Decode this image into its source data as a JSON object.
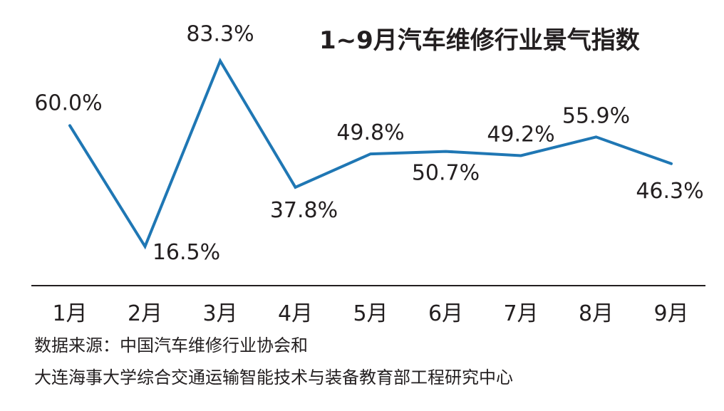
{
  "chart_data": {
    "type": "line",
    "title": "1~9月汽车维修行业景气指数",
    "categories": [
      "1月",
      "2月",
      "3月",
      "4月",
      "5月",
      "6月",
      "7月",
      "8月",
      "9月"
    ],
    "series": [
      {
        "values": [
          60.0,
          16.5,
          83.3,
          37.8,
          49.8,
          50.7,
          49.2,
          55.9,
          46.3
        ],
        "labels": [
          "60.0%",
          "16.5%",
          "83.3%",
          "37.8%",
          "49.8%",
          "50.7%",
          "49.2%",
          "55.9%",
          "46.3%"
        ]
      }
    ],
    "xlabel": "",
    "ylabel": "",
    "ylim": [
      0,
      100
    ],
    "grid": false,
    "legend": "none",
    "line_color": "#1f77b4",
    "axis_color": "#231f20"
  },
  "source": {
    "line1": "数据来源：中国汽车维修行业协会和",
    "line2": "大连海事大学综合交通运输智能技术与装备教育部工程研究中心"
  }
}
